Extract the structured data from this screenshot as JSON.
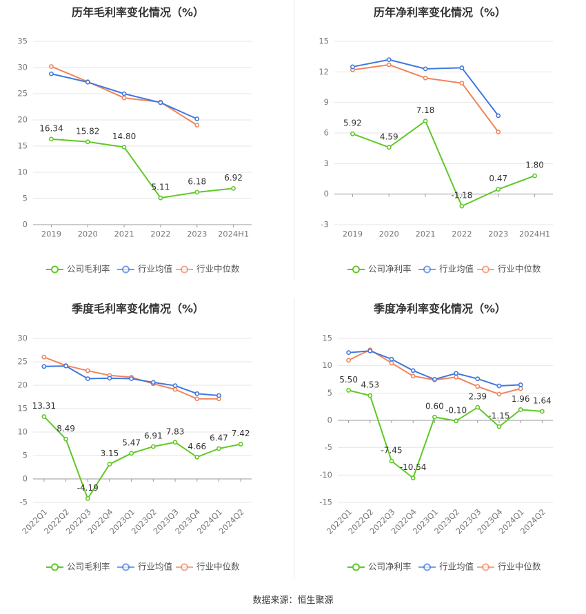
{
  "source": "数据来源：恒生聚源",
  "colors": {
    "company": "#5fc926",
    "avg": "#3f78e0",
    "median": "#f0845a",
    "grid": "#e6e6e6",
    "axis": "#999999",
    "text": "#333333",
    "tick": "#777777"
  },
  "chart_data": [
    {
      "type": "line",
      "title": "历年毛利率变化情况（%）",
      "categories": [
        "2019",
        "2020",
        "2021",
        "2022",
        "2023",
        "2024H1"
      ],
      "yticks": [
        0,
        5,
        10,
        15,
        20,
        25,
        30,
        35
      ],
      "ylim": [
        0,
        35
      ],
      "legend_position": "bottom",
      "series": [
        {
          "name": "公司毛利率",
          "color": "#5fc926",
          "values": [
            16.34,
            15.82,
            14.8,
            5.11,
            6.18,
            6.92
          ],
          "labels": [
            "16.34",
            "15.82",
            "14.80",
            "5.11",
            "6.18",
            "6.92"
          ]
        },
        {
          "name": "行业均值",
          "color": "#3f78e0",
          "values": [
            28.8,
            27.2,
            25.0,
            23.3,
            20.2,
            null
          ]
        },
        {
          "name": "行业中位数",
          "color": "#f0845a",
          "values": [
            30.2,
            27.3,
            24.2,
            23.4,
            19.0,
            null
          ]
        }
      ]
    },
    {
      "type": "line",
      "title": "历年净利率变化情况（%）",
      "categories": [
        "2019",
        "2020",
        "2021",
        "2022",
        "2023",
        "2024H1"
      ],
      "yticks": [
        -3,
        0,
        3,
        6,
        9,
        12,
        15
      ],
      "ylim": [
        -3,
        15
      ],
      "legend_position": "bottom",
      "series": [
        {
          "name": "公司净利率",
          "color": "#5fc926",
          "values": [
            5.92,
            4.59,
            7.18,
            -1.18,
            0.47,
            1.8
          ],
          "labels": [
            "5.92",
            "4.59",
            "7.18",
            "-1.18",
            "0.47",
            "1.80"
          ]
        },
        {
          "name": "行业均值",
          "color": "#3f78e0",
          "values": [
            12.5,
            13.2,
            12.3,
            12.4,
            7.7,
            null
          ]
        },
        {
          "name": "行业中位数",
          "color": "#f0845a",
          "values": [
            12.2,
            12.7,
            11.4,
            10.9,
            6.1,
            null
          ]
        }
      ]
    },
    {
      "type": "line",
      "title": "季度毛利率变化情况（%）",
      "categories": [
        "2022Q1",
        "2022Q2",
        "2022Q3",
        "2022Q4",
        "2023Q1",
        "2023Q2",
        "2023Q3",
        "2023Q4",
        "2024Q1",
        "2024Q2"
      ],
      "yticks": [
        -5,
        0,
        5,
        10,
        15,
        20,
        25,
        30
      ],
      "ylim": [
        -5,
        30
      ],
      "legend_position": "bottom",
      "series": [
        {
          "name": "公司毛利率",
          "color": "#5fc926",
          "values": [
            13.31,
            8.49,
            -4.19,
            3.15,
            5.47,
            6.91,
            7.83,
            4.66,
            6.47,
            7.42
          ],
          "labels": [
            "13.31",
            "8.49",
            "-4.19",
            "3.15",
            "5.47",
            "6.91",
            "7.83",
            "4.66",
            "6.47",
            "7.42"
          ]
        },
        {
          "name": "行业均值",
          "color": "#3f78e0",
          "values": [
            24.0,
            24.1,
            21.4,
            21.5,
            21.4,
            20.6,
            19.9,
            18.2,
            17.8,
            null
          ]
        },
        {
          "name": "行业中位数",
          "color": "#f0845a",
          "values": [
            26.0,
            24.2,
            23.1,
            22.1,
            21.7,
            20.3,
            19.1,
            17.1,
            17.1,
            null
          ]
        }
      ]
    },
    {
      "type": "line",
      "title": "季度净利率变化情况（%）",
      "categories": [
        "2022Q1",
        "2022Q2",
        "2022Q3",
        "2022Q4",
        "2023Q1",
        "2023Q2",
        "2023Q3",
        "2023Q4",
        "2024Q1",
        "2024Q2"
      ],
      "yticks": [
        -15,
        -10,
        -5,
        0,
        5,
        10,
        15
      ],
      "ylim": [
        -15,
        15
      ],
      "legend_position": "bottom",
      "series": [
        {
          "name": "公司净利率",
          "color": "#5fc926",
          "values": [
            5.5,
            4.53,
            -7.45,
            -10.54,
            0.6,
            -0.1,
            2.39,
            -1.15,
            1.96,
            1.64
          ],
          "labels": [
            "5.50",
            "4.53",
            "-7.45",
            "-10.54",
            "0.60",
            "-0.10",
            "2.39",
            "-1.15",
            "1.96",
            "1.64"
          ]
        },
        {
          "name": "行业均值",
          "color": "#3f78e0",
          "values": [
            12.4,
            12.7,
            11.2,
            9.1,
            7.5,
            8.6,
            7.6,
            6.3,
            6.5,
            null
          ]
        },
        {
          "name": "行业中位数",
          "color": "#f0845a",
          "values": [
            11.0,
            12.9,
            10.5,
            8.1,
            7.4,
            7.9,
            6.2,
            4.8,
            5.8,
            null
          ]
        }
      ]
    }
  ]
}
